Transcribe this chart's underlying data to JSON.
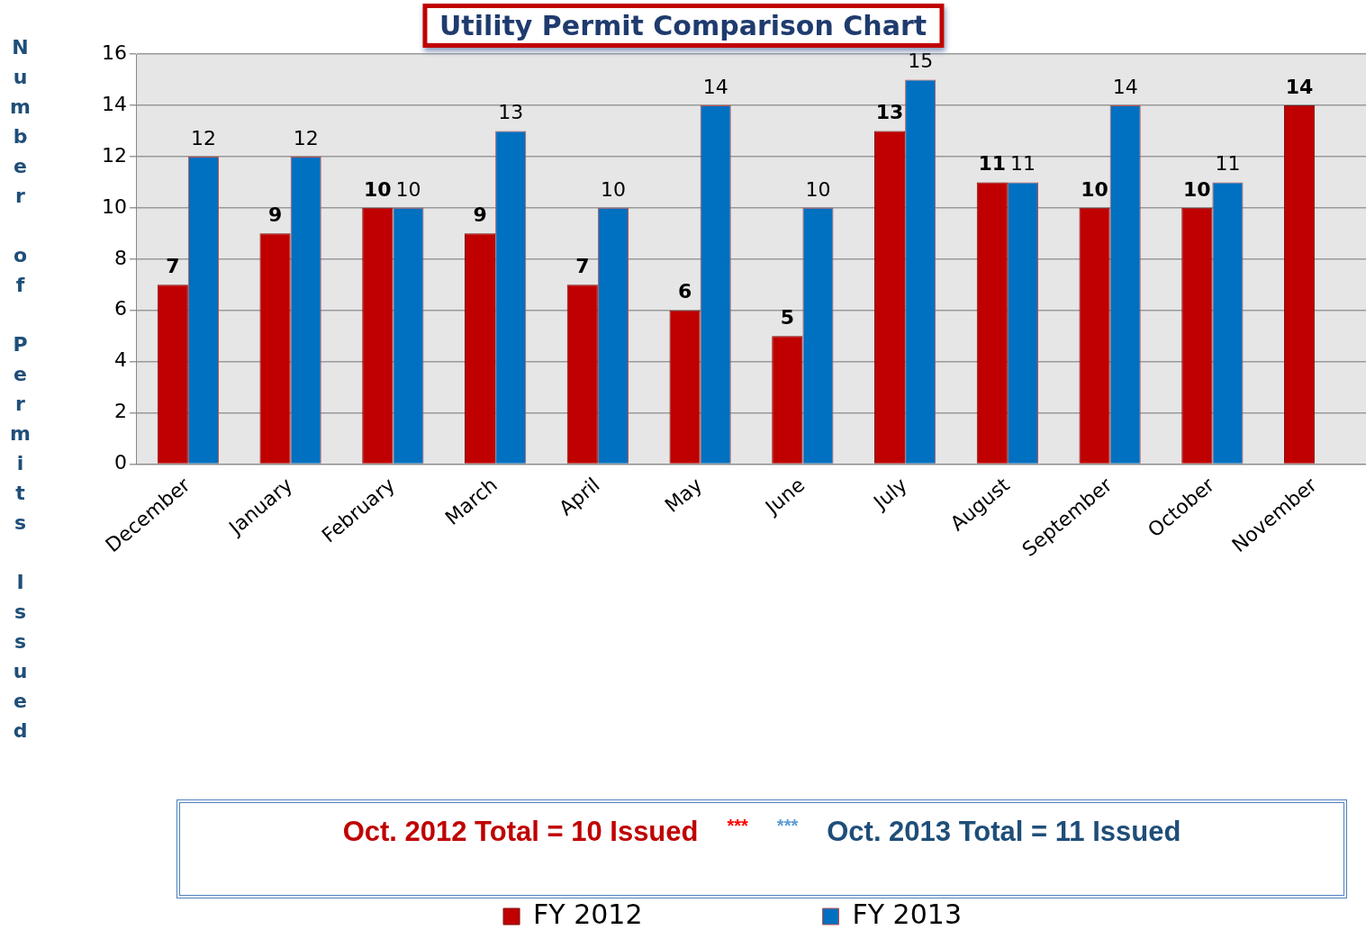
{
  "chart_data": {
    "type": "bar",
    "title": "Utility Permit Comparison Chart",
    "ylabel": "Number of Permits Issued",
    "categories": [
      "December",
      "January",
      "February",
      "March",
      "April",
      "May",
      "June",
      "July",
      "August",
      "September",
      "October",
      "November"
    ],
    "series": [
      {
        "name": "FY 2012",
        "color": "#c00000",
        "values": [
          7,
          9,
          10,
          9,
          7,
          6,
          5,
          13,
          11,
          10,
          10,
          14
        ]
      },
      {
        "name": "FY 2013",
        "color": "#0070c0",
        "values": [
          12,
          12,
          10,
          13,
          10,
          14,
          10,
          15,
          11,
          14,
          11,
          null
        ]
      }
    ],
    "ylim": [
      0,
      16
    ],
    "yticks": [
      0,
      2,
      4,
      6,
      8,
      10,
      12,
      14,
      16
    ],
    "grid": "y",
    "data_labels": true,
    "legend": "bottom",
    "annotations": [
      "Oct. 2012 Total = 10 Issued",
      "***",
      "***",
      "Oct. 2013 Total = 11 Issued"
    ]
  }
}
